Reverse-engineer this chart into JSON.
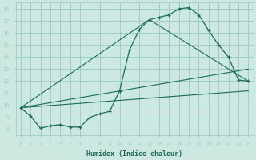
{
  "xlabel": "Humidex (Indice chaleur)",
  "bg_color": "#cce8e0",
  "grid_color": "#9ecfc4",
  "line_color": "#1a6b5a",
  "xlim": [
    -0.5,
    23.5
  ],
  "ylim": [
    7.5,
    18.5
  ],
  "xticks": [
    0,
    1,
    2,
    3,
    4,
    5,
    6,
    7,
    8,
    9,
    10,
    11,
    12,
    13,
    14,
    15,
    16,
    17,
    18,
    19,
    20,
    21,
    22,
    23
  ],
  "yticks": [
    8,
    9,
    10,
    11,
    12,
    13,
    14,
    15,
    16,
    17,
    18
  ],
  "main_curve": {
    "x": [
      0,
      1,
      2,
      3,
      4,
      5,
      6,
      7,
      8,
      9,
      10,
      11,
      12,
      13,
      14,
      15,
      16,
      17,
      18,
      19,
      20,
      21,
      22,
      23
    ],
    "y": [
      9.8,
      9.1,
      8.1,
      8.3,
      8.4,
      8.2,
      8.2,
      9.0,
      9.3,
      9.5,
      11.2,
      14.6,
      16.3,
      17.1,
      17.3,
      17.5,
      18.0,
      18.1,
      17.5,
      16.2,
      15.0,
      14.0,
      12.1,
      12.0
    ]
  },
  "tri_line1": {
    "x": [
      0,
      13,
      23
    ],
    "y": [
      9.8,
      17.1,
      12.0
    ]
  },
  "straight_line1": {
    "x": [
      0,
      23
    ],
    "y": [
      9.8,
      13.0
    ]
  },
  "straight_line2": {
    "x": [
      0,
      23
    ],
    "y": [
      9.8,
      11.2
    ]
  }
}
